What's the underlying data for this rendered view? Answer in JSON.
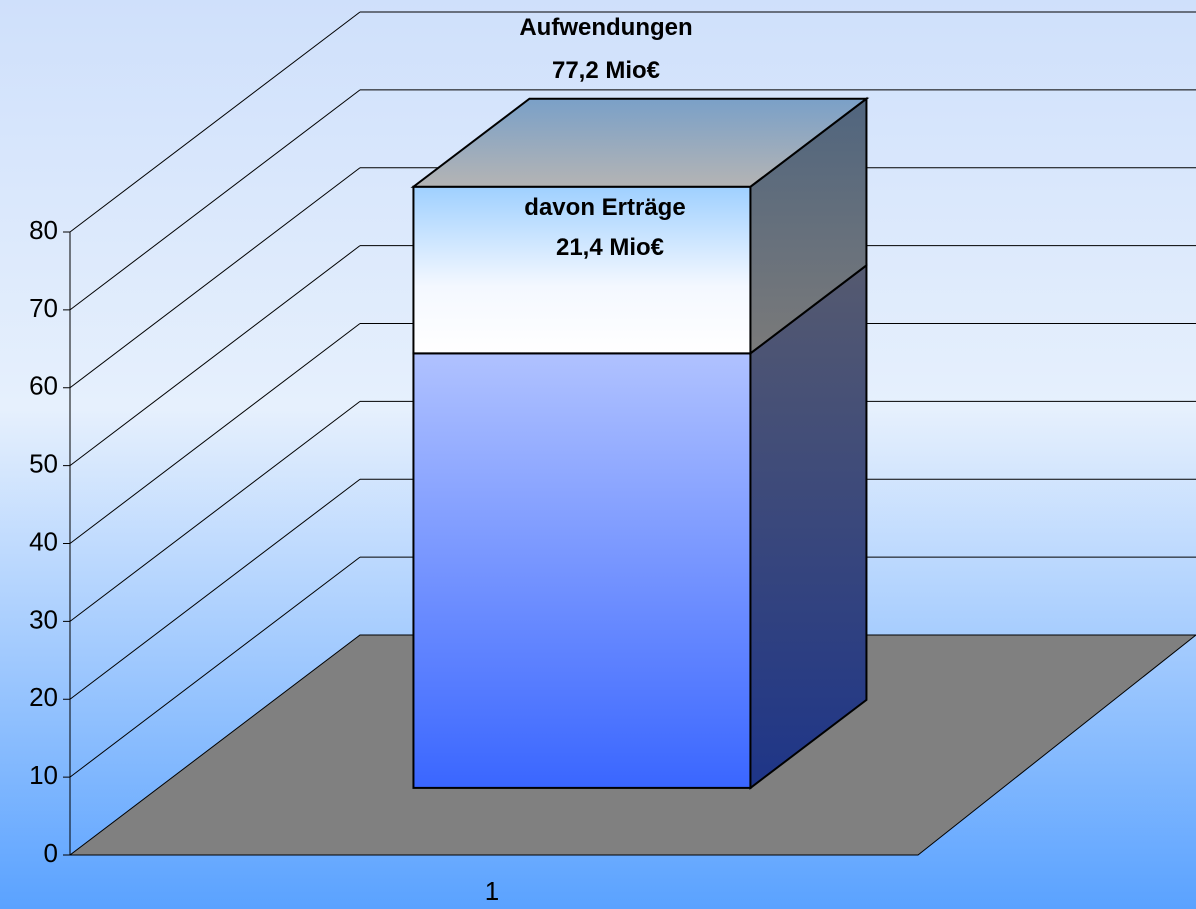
{
  "chart_data": {
    "type": "bar3d_stacked",
    "categories": [
      "1"
    ],
    "series": [
      {
        "values": [
          55.8
        ],
        "color": "#3a66ff"
      },
      {
        "name": "davon Erträge",
        "values": [
          21.4
        ],
        "value_labels": [
          "21,4 Mio€"
        ],
        "color": "#9fd0ff"
      }
    ],
    "total": {
      "label": "Aufwendungen",
      "value": 77.2,
      "value_label": "77,2 Mio€"
    },
    "ylim": [
      0,
      80
    ],
    "yticks": [
      0,
      10,
      20,
      30,
      40,
      50,
      60,
      70,
      80
    ],
    "grid": true
  }
}
